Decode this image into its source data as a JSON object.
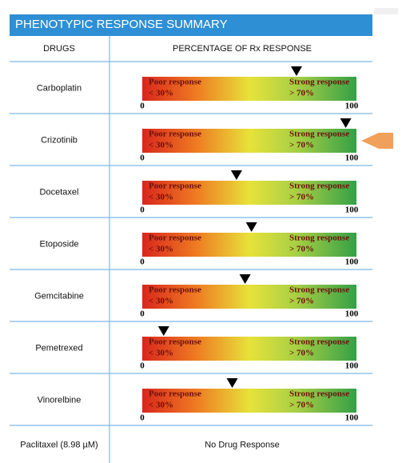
{
  "header": {
    "title": "PHENOTYPIC RESPONSE SUMMARY"
  },
  "table": {
    "columns": [
      "DRUGS",
      "PERCENTAGE OF Rx RESPONSE"
    ],
    "scale": {
      "min": 0,
      "max": 100,
      "poor_label": "Poor response",
      "poor_range": "< 30%",
      "strong_label": "Strong response",
      "strong_range": "> 70%"
    },
    "rows": [
      {
        "drug": "Carboplatin",
        "response": 72
      },
      {
        "drug": "Crizotinib",
        "response": 95
      },
      {
        "drug": "Docetaxel",
        "response": 44
      },
      {
        "drug": "Etoposide",
        "response": 51
      },
      {
        "drug": "Gemcitabine",
        "response": 48
      },
      {
        "drug": "Pemetrexed",
        "response": 10
      },
      {
        "drug": "Vinorelbine",
        "response": 42
      },
      {
        "drug": "Paclitaxel (8.98 µM)",
        "result": "No Drug Response"
      }
    ]
  }
}
